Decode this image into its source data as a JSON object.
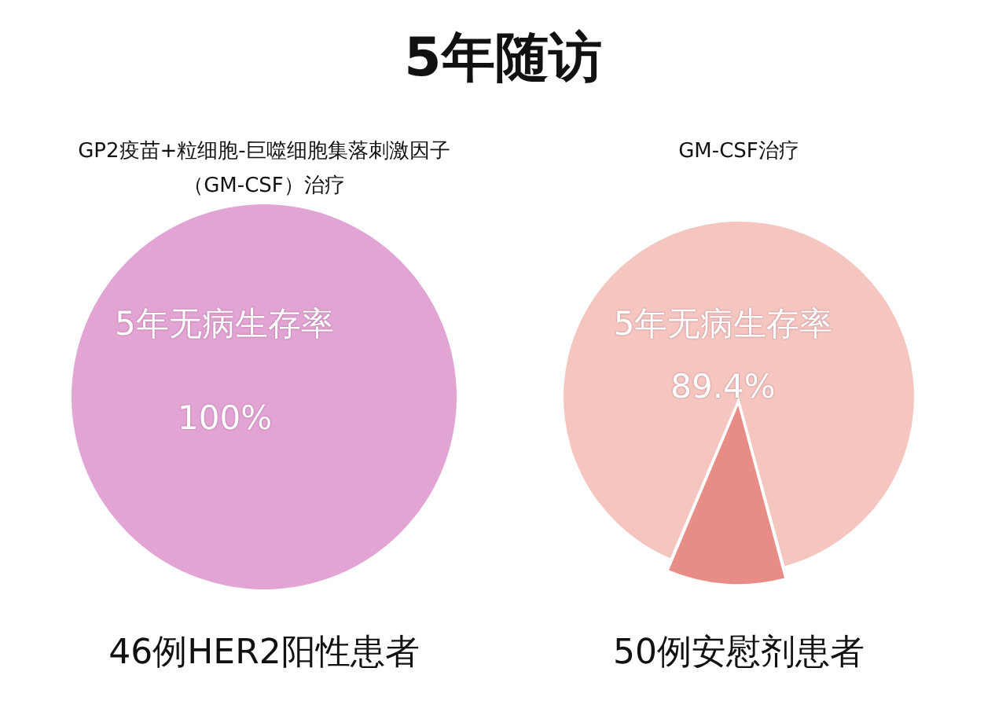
{
  "chart_data": [
    {
      "type": "pie",
      "title": "5年随访",
      "subtitle": "GP2疫苗+粒细胞-巨噬细胞集落刺激因子（GM-CSF）治疗",
      "xlabel": "46例HER2阳性患者",
      "categories": [
        null
      ],
      "values": [
        100
      ],
      "colors": [
        "#e2a4d3"
      ],
      "value_labels": [
        "100%"
      ],
      "annotations": [
        "5年无病生存率"
      ],
      "legend": false
    },
    {
      "type": "pie",
      "subtitle": "GM-CSF治疗",
      "xlabel": "50例安慰剂患者",
      "categories": [
        null,
        null
      ],
      "values": [
        89.4,
        10.6
      ],
      "colors": [
        "#f5c6bf",
        "#e88d86"
      ],
      "value_labels": [
        "89.4%",
        null
      ],
      "annotations": [
        "5年无病生存率"
      ],
      "legend": false
    }
  ]
}
